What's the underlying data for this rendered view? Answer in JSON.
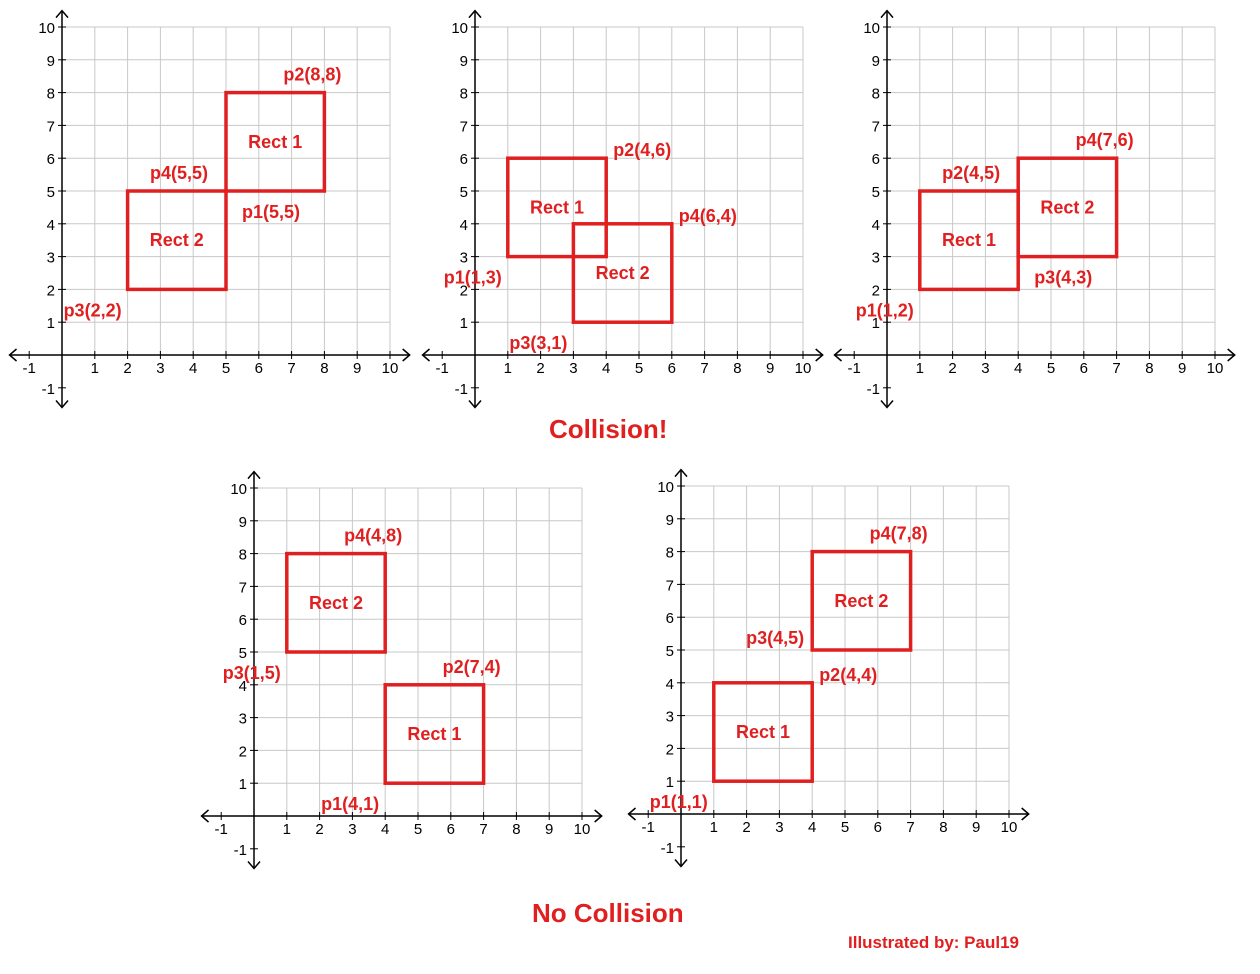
{
  "captions": {
    "collision": "Collision!",
    "no_collision": "No Collision",
    "credit": "Illustrated by: Paul19"
  },
  "colors": {
    "rect": "#e02020",
    "grid": "#c8c8c8",
    "axis": "#000000",
    "tick_text": "#000000"
  },
  "axis": {
    "min": -1,
    "max": 10,
    "x_ticks": [
      "-1",
      "1",
      "2",
      "3",
      "4",
      "5",
      "6",
      "7",
      "8",
      "9",
      "10"
    ],
    "y_ticks": [
      "10",
      "9",
      "8",
      "7",
      "6",
      "5",
      "4",
      "3",
      "2",
      "1",
      "-1"
    ]
  },
  "panels": [
    {
      "group": "collision",
      "rects": [
        {
          "label": "Rect 1",
          "x1": 5,
          "y1": 5,
          "x2": 8,
          "y2": 8
        },
        {
          "label": "Rect 2",
          "x1": 2,
          "y1": 2,
          "x2": 5,
          "y2": 5
        }
      ],
      "points": [
        {
          "text": "p2(8,8)",
          "x": 8,
          "y": 8,
          "pos": "above"
        },
        {
          "text": "p1(5,5)",
          "x": 5,
          "y": 5,
          "pos": "below-right"
        },
        {
          "text": "p4(5,5)",
          "x": 5,
          "y": 5,
          "pos": "above-left"
        },
        {
          "text": "p3(2,2)",
          "x": 2,
          "y": 2,
          "pos": "below-left"
        }
      ]
    },
    {
      "group": "collision",
      "rects": [
        {
          "label": "Rect 1",
          "x1": 1,
          "y1": 3,
          "x2": 4,
          "y2": 6
        },
        {
          "label": "Rect 2",
          "x1": 3,
          "y1": 1,
          "x2": 6,
          "y2": 4
        }
      ],
      "points": [
        {
          "text": "p2(4,6)",
          "x": 4,
          "y": 6,
          "pos": "right"
        },
        {
          "text": "p4(6,4)",
          "x": 6,
          "y": 4,
          "pos": "right"
        },
        {
          "text": "p1(1,3)",
          "x": 1,
          "y": 3,
          "pos": "below-left"
        },
        {
          "text": "p3(3,1)",
          "x": 3,
          "y": 1,
          "pos": "below-left"
        }
      ]
    },
    {
      "group": "collision",
      "rects": [
        {
          "label": "Rect 1",
          "x1": 1,
          "y1": 2,
          "x2": 4,
          "y2": 5
        },
        {
          "label": "Rect 2",
          "x1": 4,
          "y1": 3,
          "x2": 7,
          "y2": 6
        }
      ],
      "points": [
        {
          "text": "p4(7,6)",
          "x": 7,
          "y": 6,
          "pos": "above"
        },
        {
          "text": "p2(4,5)",
          "x": 4,
          "y": 5,
          "pos": "above-left"
        },
        {
          "text": "p3(4,3)",
          "x": 4,
          "y": 3,
          "pos": "below-right"
        },
        {
          "text": "p1(1,2)",
          "x": 1,
          "y": 2,
          "pos": "below-left"
        }
      ]
    },
    {
      "group": "no_collision",
      "rects": [
        {
          "label": "Rect 2",
          "x1": 1,
          "y1": 5,
          "x2": 4,
          "y2": 8
        },
        {
          "label": "Rect 1",
          "x1": 4,
          "y1": 1,
          "x2": 7,
          "y2": 4
        }
      ],
      "points": [
        {
          "text": "p4(4,8)",
          "x": 4,
          "y": 8,
          "pos": "above"
        },
        {
          "text": "p3(1,5)",
          "x": 1,
          "y": 5,
          "pos": "below-left"
        },
        {
          "text": "p2(7,4)",
          "x": 7,
          "y": 4,
          "pos": "above"
        },
        {
          "text": "p1(4,1)",
          "x": 4,
          "y": 1,
          "pos": "below-left"
        }
      ]
    },
    {
      "group": "no_collision",
      "rects": [
        {
          "label": "Rect 2",
          "x1": 4,
          "y1": 5,
          "x2": 7,
          "y2": 8
        },
        {
          "label": "Rect 1",
          "x1": 1,
          "y1": 1,
          "x2": 4,
          "y2": 4
        }
      ],
      "points": [
        {
          "text": "p4(7,8)",
          "x": 7,
          "y": 8,
          "pos": "above"
        },
        {
          "text": "p3(4,5)",
          "x": 4,
          "y": 5,
          "pos": "left"
        },
        {
          "text": "p2(4,4)",
          "x": 4,
          "y": 4,
          "pos": "right"
        },
        {
          "text": "p1(1,1)",
          "x": 1,
          "y": 1,
          "pos": "below-left"
        }
      ]
    }
  ]
}
